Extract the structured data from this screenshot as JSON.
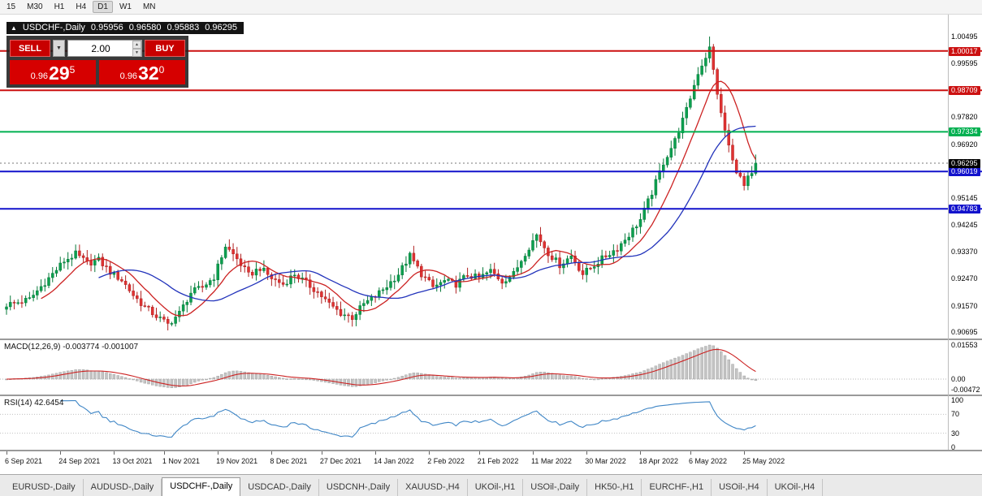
{
  "toolbar": {
    "timeframes": [
      "15",
      "M30",
      "H1",
      "H4",
      "D1",
      "W1",
      "MN"
    ],
    "active": "D1"
  },
  "chart": {
    "symbol_title": "USDCHF-,Daily",
    "collapse_icon": "▲",
    "ohlc": {
      "open": "0.95956",
      "high": "0.96580",
      "low": "0.95883",
      "close": "0.96295"
    },
    "trade_panel": {
      "sell_label": "SELL",
      "buy_label": "BUY",
      "volume": "2.00",
      "dropdown_icon": "▼",
      "spinner_up_icon": "▲",
      "spinner_down_icon": "▼",
      "sell_price": {
        "base": "0.96",
        "pips": "29",
        "point": "5"
      },
      "buy_price": {
        "base": "0.96",
        "pips": "32",
        "point": "0"
      }
    },
    "price_axis_plain": [
      "1.00495",
      "0.99595",
      "0.97820",
      "0.96920",
      "0.95145",
      "0.94245",
      "0.93370",
      "0.92470",
      "0.91570",
      "0.90695"
    ],
    "bid": {
      "price": "0.96295",
      "color": "#000000"
    }
  },
  "macd": {
    "label": "MACD(12,26,9) -0.003774 -0.001007",
    "axis": [
      {
        "text": "0.01553",
        "value": 0.01553
      },
      {
        "text": "0.00",
        "value": 0
      },
      {
        "text": "-0.00472",
        "value": -0.00472
      }
    ]
  },
  "rsi": {
    "label": "RSI(14) 42.6454",
    "axis": [
      {
        "text": "100",
        "value": 100
      },
      {
        "text": "70",
        "value": 70
      },
      {
        "text": "30",
        "value": 30
      },
      {
        "text": "0",
        "value": 0
      }
    ]
  },
  "tabs": {
    "items": [
      "EURUSD-,Daily",
      "AUDUSD-,Daily",
      "USDCHF-,Daily",
      "USDCAD-,Daily",
      "USDCNH-,Daily",
      "XAUUSD-,H4",
      "UKOil-,H1",
      "USOil-,Daily",
      "HK50-,H1",
      "EURCHF-,H1",
      "USOil-,H4",
      "UKOil-,H4"
    ],
    "active_index": 2
  },
  "chart_data": {
    "type": "candlestick",
    "symbol": "USDCHF",
    "timeframe": "Daily",
    "candle_count": 196,
    "anchor_step": 3,
    "close_anchors": [
      0.916,
      0.9168,
      0.9178,
      0.922,
      0.9262,
      0.9305,
      0.9328,
      0.9298,
      0.9308,
      0.9268,
      0.9242,
      0.9192,
      0.9152,
      0.9122,
      0.9095,
      0.9132,
      0.92,
      0.9218,
      0.9252,
      0.9355,
      0.9312,
      0.9258,
      0.9282,
      0.9248,
      0.9228,
      0.9262,
      0.9232,
      0.9202,
      0.9162,
      0.9132,
      0.9118,
      0.9162,
      0.9188,
      0.9222,
      0.9262,
      0.9322,
      0.9262,
      0.9218,
      0.9238,
      0.9228,
      0.9258,
      0.9248,
      0.9272,
      0.9238,
      0.9262,
      0.9332,
      0.9392,
      0.9332,
      0.9292,
      0.9322,
      0.9262,
      0.9292,
      0.9322,
      0.9348,
      0.9392,
      0.9442,
      0.9532,
      0.9632,
      0.9705,
      0.9805,
      0.993,
      1.001,
      0.979,
      0.9635,
      0.9552,
      0.963
    ],
    "prev_close": 0.95956,
    "last_close": 0.96295,
    "last_high": 0.9658,
    "last_low": 0.95883,
    "max_high": 1.00495,
    "ma_fast_period": 10,
    "ma_slow_period": 25,
    "hlines": [
      {
        "price": 1.00017,
        "color": "#cc1111"
      },
      {
        "price": 0.98709,
        "color": "#cc1111"
      },
      {
        "price": 0.97334,
        "color": "#00b050"
      },
      {
        "price": 0.96019,
        "color": "#1212cc"
      },
      {
        "price": 0.94783,
        "color": "#1212cc"
      }
    ],
    "date_ticks": [
      {
        "label": "6 Sep 2021",
        "i": 0
      },
      {
        "label": "24 Sep 2021",
        "i": 14
      },
      {
        "label": "13 Oct 2021",
        "i": 28
      },
      {
        "label": "1 Nov 2021",
        "i": 41
      },
      {
        "label": "19 Nov 2021",
        "i": 55
      },
      {
        "label": "8 Dec 2021",
        "i": 69
      },
      {
        "label": "27 Dec 2021",
        "i": 82
      },
      {
        "label": "14 Jan 2022",
        "i": 96
      },
      {
        "label": "2 Feb 2022",
        "i": 110
      },
      {
        "label": "21 Feb 2022",
        "i": 123
      },
      {
        "label": "11 Mar 2022",
        "i": 137
      },
      {
        "label": "30 Mar 2022",
        "i": 151
      },
      {
        "label": "18 Apr 2022",
        "i": 165
      },
      {
        "label": "6 May 2022",
        "i": 178
      },
      {
        "label": "25 May 2022",
        "i": 192
      }
    ],
    "colors": {
      "candle_up": "#0ca04f",
      "candle_up_border": "#077a3a",
      "candle_down": "#e03232",
      "candle_down_border": "#b02020",
      "ma_fast": "#cc2222",
      "ma_slow": "#2233bb",
      "macd_hist": "#c4c4c4",
      "macd_hist_border": "#9a9a9a",
      "macd_signal": "#cc2222",
      "rsi_line": "#3f86c6",
      "bid_line": "#777777"
    }
  }
}
